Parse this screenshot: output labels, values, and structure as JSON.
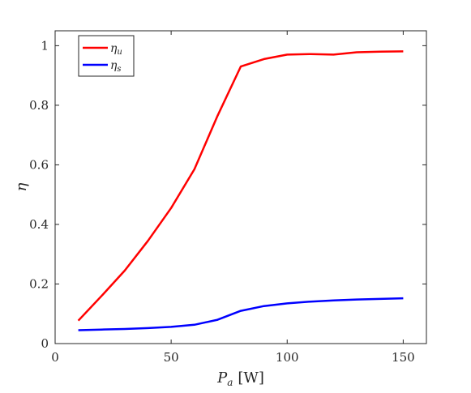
{
  "chart_data": {
    "type": "line",
    "xlabel_main": "P",
    "xlabel_sub": "a",
    "xlabel_unit": "[W]",
    "ylabel": "η",
    "xlim": [
      0,
      160
    ],
    "ylim": [
      0,
      1.05
    ],
    "xticks": [
      0,
      50,
      100,
      150
    ],
    "yticks": [
      0,
      0.2,
      0.4,
      0.6,
      0.8,
      1
    ],
    "ytick_labels": [
      "0",
      "0.2",
      "0.4",
      "0.6",
      "0.8",
      "1"
    ],
    "grid": false,
    "legend_position": "top-left",
    "series": [
      {
        "name_main": "η",
        "name_sub": "u",
        "color": "#ff0000",
        "x": [
          10,
          20,
          30,
          40,
          50,
          60,
          70,
          80,
          90,
          100,
          110,
          120,
          130,
          140,
          150
        ],
        "y": [
          0.077,
          0.16,
          0.245,
          0.345,
          0.455,
          0.585,
          0.765,
          0.93,
          0.955,
          0.97,
          0.972,
          0.97,
          0.978,
          0.98,
          0.981
        ]
      },
      {
        "name_main": "η",
        "name_sub": "s",
        "color": "#0000ff",
        "x": [
          10,
          20,
          30,
          40,
          50,
          60,
          70,
          80,
          90,
          100,
          110,
          120,
          130,
          140,
          150
        ],
        "y": [
          0.045,
          0.047,
          0.049,
          0.052,
          0.056,
          0.063,
          0.08,
          0.11,
          0.126,
          0.135,
          0.141,
          0.145,
          0.148,
          0.15,
          0.152
        ]
      }
    ]
  }
}
